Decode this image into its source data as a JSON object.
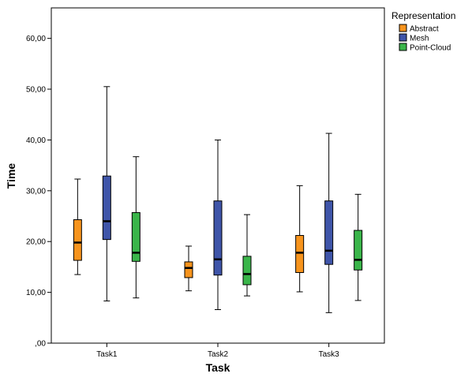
{
  "chart_data": {
    "type": "boxplot",
    "title": "",
    "xlabel": "Task",
    "ylabel": "Time",
    "ylim": [
      0,
      66
    ],
    "yticks": [
      0,
      10,
      20,
      30,
      40,
      50,
      60
    ],
    "ytick_labels": [
      ",00",
      "10,00",
      "20,00",
      "30,00",
      "40,00",
      "50,00",
      "60,00"
    ],
    "categories": [
      "Task1",
      "Task2",
      "Task3"
    ],
    "legend": {
      "title": "Representation",
      "placement": "top-right"
    },
    "series": [
      {
        "name": "Abstract",
        "color": "#f7941d",
        "boxes": [
          {
            "whisker_low": 13.5,
            "q1": 16.3,
            "median": 19.8,
            "q3": 24.3,
            "whisker_high": 32.3
          },
          {
            "whisker_low": 10.3,
            "q1": 12.9,
            "median": 14.8,
            "q3": 16.0,
            "whisker_high": 19.1
          },
          {
            "whisker_low": 10.1,
            "q1": 13.9,
            "median": 17.8,
            "q3": 21.2,
            "whisker_high": 31.0
          }
        ]
      },
      {
        "name": "Mesh",
        "color": "#3f55a9",
        "boxes": [
          {
            "whisker_low": 8.3,
            "q1": 20.4,
            "median": 24.0,
            "q3": 32.9,
            "whisker_high": 50.5
          },
          {
            "whisker_low": 6.6,
            "q1": 13.4,
            "median": 16.5,
            "q3": 28.0,
            "whisker_high": 40.0
          },
          {
            "whisker_low": 6.0,
            "q1": 15.5,
            "median": 18.2,
            "q3": 28.0,
            "whisker_high": 41.3
          }
        ]
      },
      {
        "name": "Point-Cloud",
        "color": "#3ab54a",
        "boxes": [
          {
            "whisker_low": 8.9,
            "q1": 16.1,
            "median": 17.8,
            "q3": 25.7,
            "whisker_high": 36.7
          },
          {
            "whisker_low": 9.3,
            "q1": 11.5,
            "median": 13.6,
            "q3": 17.1,
            "whisker_high": 25.3
          },
          {
            "whisker_low": 8.4,
            "q1": 14.4,
            "median": 16.4,
            "q3": 22.2,
            "whisker_high": 29.3
          }
        ]
      }
    ]
  }
}
